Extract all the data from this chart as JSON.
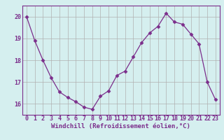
{
  "x": [
    0,
    1,
    2,
    3,
    4,
    5,
    6,
    7,
    8,
    9,
    10,
    11,
    12,
    13,
    14,
    15,
    16,
    17,
    18,
    19,
    20,
    21,
    22,
    23
  ],
  "y": [
    20.0,
    18.9,
    18.0,
    17.2,
    16.55,
    16.3,
    16.1,
    15.85,
    15.75,
    16.35,
    16.6,
    17.3,
    17.5,
    18.15,
    18.8,
    19.25,
    19.55,
    20.15,
    19.75,
    19.65,
    19.2,
    18.75,
    17.0,
    16.2
  ],
  "line_color": "#7b2d8b",
  "marker": "D",
  "marker_size": 2.5,
  "bg_color": "#d5efef",
  "grid_color": "#b0b0b0",
  "xlabel": "Windchill (Refroidissement éolien,°C)",
  "ylim": [
    15.5,
    20.5
  ],
  "xlim": [
    -0.5,
    23.5
  ],
  "yticks": [
    16,
    17,
    18,
    19,
    20
  ],
  "xticks": [
    0,
    1,
    2,
    3,
    4,
    5,
    6,
    7,
    8,
    9,
    10,
    11,
    12,
    13,
    14,
    15,
    16,
    17,
    18,
    19,
    20,
    21,
    22,
    23
  ],
  "tick_color": "#7b2d8b",
  "label_fontsize": 6.5,
  "tick_fontsize": 6.0,
  "spine_color": "#7b2d8b"
}
